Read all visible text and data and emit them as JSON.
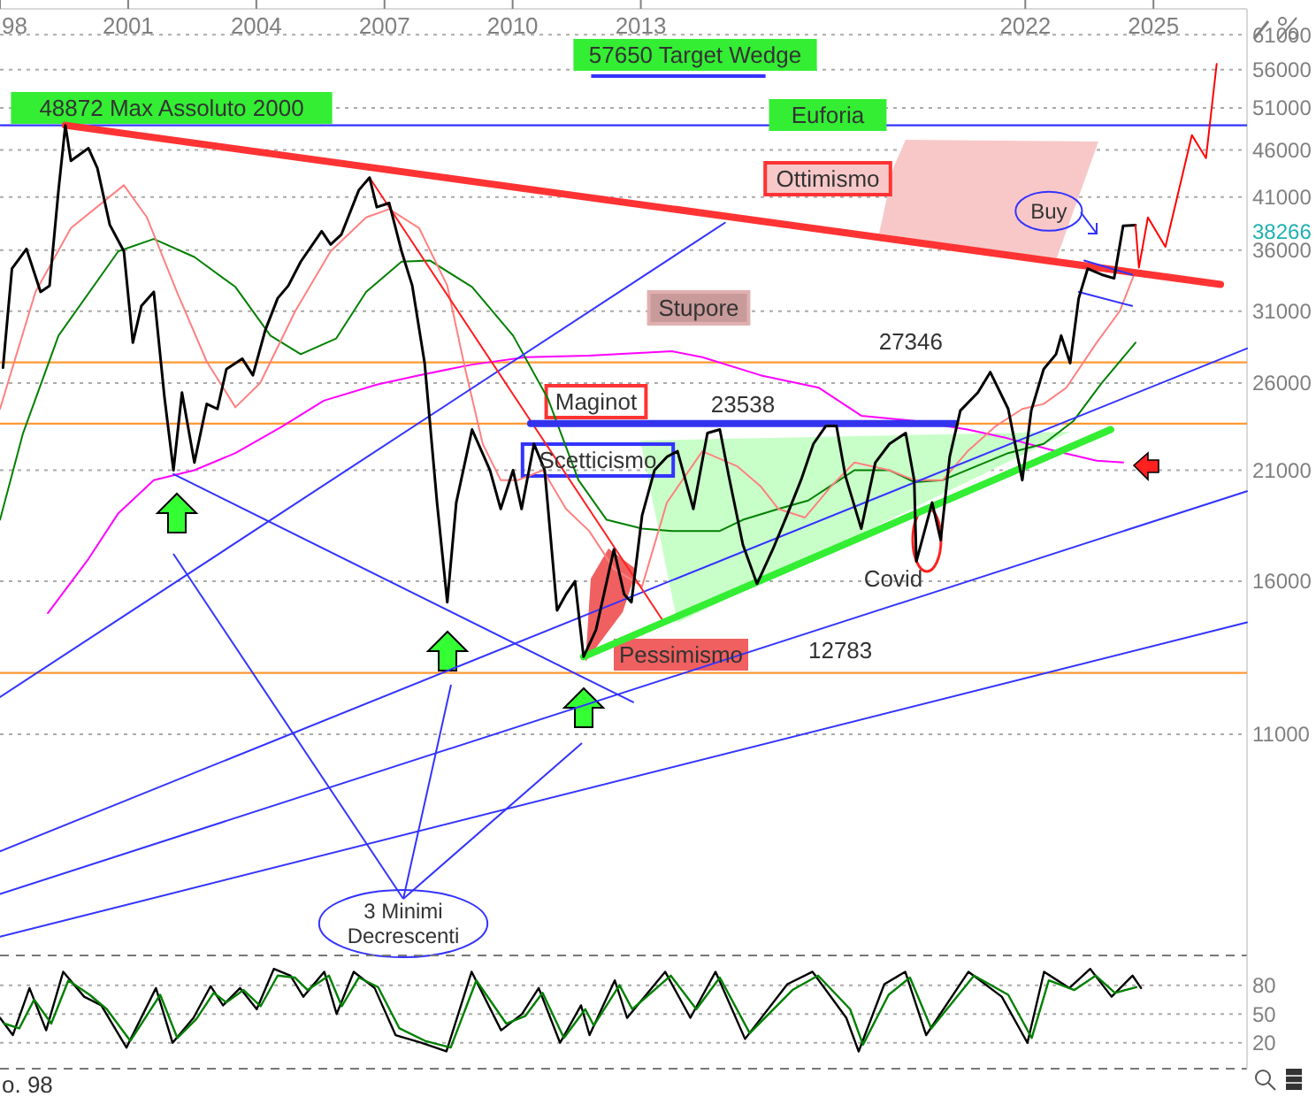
{
  "chart_data": [
    {
      "type": "line",
      "xlim": [
        1998,
        2027.19
      ],
      "xticks": [
        {
          "value": 1998,
          "label": "98"
        },
        2001,
        2004,
        2007,
        2010,
        2013,
        2022,
        2025
      ],
      "ylim": [
        6400,
        65000
      ],
      "yticks": [
        11000,
        16000,
        21000,
        26000,
        31000,
        36000,
        41000,
        46000,
        51000,
        56000,
        61000
      ],
      "log": "y",
      "grid": "y",
      "ref_lines": [
        {
          "axis": "y",
          "value": 48872,
          "color": "#3333ff"
        },
        {
          "axis": "y",
          "value": 23538,
          "color": "#ff9933"
        },
        {
          "axis": "y",
          "value": 27346,
          "color": "#ff9933"
        },
        {
          "axis": "y",
          "value": 12783,
          "color": "#ff9933"
        }
      ],
      "series": [
        {
          "type": "line",
          "color": "#ff00ff",
          "x": [
            1999.12,
            2000.07,
            2000.77,
            2001.6,
            2002.55,
            2003.51,
            2004.62,
            2005.58,
            2006.82,
            2007.81,
            2009.05,
            2010.3,
            2011.79,
            2013.73,
            2014.44,
            2015.8,
            2017.17,
            2018.16,
            2019.4,
            2020.65,
            2021.6,
            2022.72,
            2023.67,
            2024.29
          ],
          "values": [
            14800,
            16900,
            18900,
            20500,
            21000,
            21900,
            23400,
            24900,
            25900,
            26500,
            27200,
            27700,
            27800,
            28100,
            27700,
            26500,
            25700,
            24000,
            23700,
            23200,
            22700,
            22000,
            21500,
            21400
          ]
        },
        {
          "type": "line",
          "color": "#008000",
          "x": [
            1998,
            1998.54,
            1999.37,
            2000.77,
            2001.6,
            2002.55,
            2003.51,
            2004.33,
            2005.04,
            2005.87,
            2006.57,
            2007.4,
            2008.06,
            2009.05,
            2010.01,
            2010.83,
            2011.54,
            2012.2,
            2013.03,
            2013.73,
            2014.85,
            2015.39,
            2016.22,
            2016.92,
            2017.58,
            2018,
            2018.82,
            2019.4,
            2020.07,
            2021.06,
            2021.6,
            2022.43,
            2023.13,
            2023.79,
            2024.58
          ],
          "values": [
            18600,
            23000,
            29200,
            35900,
            37000,
            35400,
            32900,
            29200,
            27900,
            29000,
            32500,
            35000,
            35100,
            32900,
            29200,
            25000,
            20500,
            18600,
            18200,
            18100,
            18100,
            18600,
            19100,
            19500,
            20400,
            21000,
            21000,
            20400,
            20500,
            21400,
            21900,
            22400,
            23700,
            26000,
            28700
          ]
        },
        {
          "type": "line",
          "color": "#ff8080",
          "x": [
            1998,
            1998.83,
            1999.66,
            2000.9,
            2001.44,
            2002.14,
            2002.84,
            2003.51,
            2004.09,
            2004.91,
            2005.74,
            2006.57,
            2007.11,
            2007.81,
            2008.47,
            2008.89,
            2009.3,
            2009.72,
            2010.13,
            2010.71,
            2011.25,
            2011.79,
            2012.37,
            2013.03,
            2013.61,
            2014.44,
            2015.26,
            2015.8,
            2016.22,
            2016.84,
            2017.46,
            2018,
            2018.82,
            2019.4,
            2020.07,
            2020.65,
            2021.31,
            2021.93,
            2022.43,
            2022.96,
            2023.67,
            2024.21,
            2024.58
          ],
          "values": [
            24400,
            32500,
            38000,
            42200,
            39000,
            32500,
            27400,
            24500,
            26000,
            31000,
            35900,
            39000,
            39800,
            38000,
            33000,
            26900,
            22400,
            20500,
            20500,
            21000,
            19100,
            18100,
            16500,
            15800,
            19400,
            22000,
            21200,
            20200,
            19100,
            18700,
            20200,
            21400,
            21000,
            20500,
            20500,
            22000,
            23400,
            24400,
            24700,
            25700,
            28700,
            31000,
            34200
          ]
        },
        {
          "type": "line",
          "color": "#3333ff",
          "x": [
            2002.06,
            2012.82
          ],
          "values": [
            20800,
            11900
          ]
        },
        {
          "type": "line",
          "color": "#3333ff",
          "x": [
            1998,
            2014.97
          ],
          "values": [
            12050,
            38500
          ]
        },
        {
          "type": "line",
          "color": "#3333ff",
          "x": [
            1998,
            2027.19
          ],
          "values": [
            8260,
            28300
          ]
        },
        {
          "type": "line",
          "color": "#3333ff",
          "x": [
            1998,
            2027.19
          ],
          "values": [
            7440,
            19950
          ]
        },
        {
          "type": "line",
          "color": "#3333ff",
          "x": [
            1998,
            2027.19
          ],
          "values": [
            6700,
            14470
          ]
        },
        {
          "type": "line",
          "color": "#ff3333",
          "x": [
            1999.53,
            2026.57
          ],
          "values": [
            48872,
            33100
          ]
        },
        {
          "type": "line",
          "color": "#ff2020",
          "x": [
            2006.65,
            2013.53
          ],
          "values": [
            43000,
            14500
          ]
        },
        {
          "type": "line",
          "color": "#33ee33",
          "x": [
            2011.66,
            2024.0
          ],
          "values": [
            13300,
            23200
          ]
        },
        {
          "type": "line",
          "color": "#3333ee",
          "x": [
            2010.42,
            2020.36
          ],
          "values": [
            23538,
            23538
          ]
        },
        {
          "type": "line",
          "color": "#3333ff",
          "x": [
            2023.38,
            2024.5
          ],
          "values": [
            35100,
            33900
          ]
        },
        {
          "type": "line",
          "color": "#3333ff",
          "x": [
            2023.25,
            2024.5
          ],
          "values": [
            32500,
            31400
          ]
        },
        {
          "type": "line",
          "color": "#000000",
          "x": [
            1998.07,
            1998.28,
            1998.62,
            1998.95,
            1999.16,
            1999.37,
            1999.53,
            1999.66,
            2000.07,
            2000.28,
            2000.57,
            2000.9,
            2001.11,
            2001.31,
            2001.6,
            2001.85,
            2002.06,
            2002.26,
            2002.55,
            2002.84,
            2003.09,
            2003.3,
            2003.67,
            2003.92,
            2004.21,
            2004.5,
            2004.75,
            2005.04,
            2005.53,
            2005.74,
            2005.99,
            2006.4,
            2006.65,
            2006.82,
            2007.11,
            2007.4,
            2007.65,
            2007.94,
            2008.23,
            2008.47,
            2008.68,
            2009.05,
            2009.47,
            2009.72,
            2010.01,
            2010.21,
            2010.5,
            2010.75,
            2011.04,
            2011.25,
            2011.46,
            2011.66,
            2011.95,
            2012.37,
            2012.61,
            2012.78,
            2013.03,
            2013.32,
            2013.61,
            2013.86,
            2014.23,
            2014.56,
            2014.85,
            2015.06,
            2015.39,
            2015.72,
            2016.09,
            2016.42,
            2016.75,
            2017.04,
            2017.33,
            2017.58,
            2017.79,
            2018.16,
            2018.49,
            2018.82,
            2019.2,
            2019.4,
            2019.45,
            2019.82,
            2020.02,
            2020.23,
            2020.48,
            2020.89,
            2021.18,
            2021.6,
            2021.93,
            2022.14,
            2022.43,
            2022.72,
            2022.84,
            2023.05,
            2023.25,
            2023.46,
            2023.79,
            2024.08,
            2024.29,
            2024.58
          ],
          "values": [
            27000,
            34400,
            36100,
            32500,
            33000,
            41700,
            48872,
            44800,
            46200,
            44000,
            38300,
            35900,
            28700,
            31400,
            32500,
            25100,
            21000,
            25400,
            21400,
            24700,
            24400,
            26900,
            27600,
            26500,
            29600,
            32000,
            33000,
            35000,
            37700,
            36500,
            37400,
            41700,
            43000,
            40000,
            40400,
            35900,
            33000,
            27300,
            19400,
            15200,
            19400,
            23200,
            21000,
            19100,
            21000,
            19100,
            22400,
            21000,
            14900,
            15500,
            16000,
            13300,
            14200,
            17300,
            15500,
            15200,
            18800,
            21000,
            21700,
            22000,
            19100,
            23000,
            23200,
            20700,
            17500,
            15900,
            17300,
            18800,
            20500,
            22400,
            23400,
            23400,
            20700,
            18200,
            21400,
            22400,
            23000,
            20500,
            16800,
            19400,
            17700,
            21700,
            24300,
            25400,
            26700,
            24400,
            20500,
            24300,
            26900,
            27900,
            29200,
            27300,
            32000,
            34400,
            33900,
            33600,
            38200,
            38266
          ]
        },
        {
          "type": "line",
          "color": "#ff0000",
          "x": [
            2024.58,
            2024.66,
            2024.87,
            2025.28,
            2025.9,
            2026.23,
            2026.48
          ],
          "values": [
            38266,
            34500,
            39000,
            36300,
            47700,
            45100,
            56800
          ]
        }
      ],
      "annotations": [
        "48872 Max Assoluto 2000",
        "57650 Target Wedge",
        "Euforia",
        "Ottimismo",
        "Stupore",
        "Maginot",
        {
          "text": "23538",
          "x": 2015.39,
          "y": 23538
        },
        "Scetticismo",
        {
          "text": "27346",
          "x": 2019.32,
          "y": 27346
        },
        "Covid",
        "Pessimismo",
        {
          "text": "12783",
          "x": 2017.67,
          "y": 12783
        },
        {
          "text": "Buy",
          "x": 2022.55,
          "y": 39600
        },
        "3 Minimi Decrescenti",
        "38266"
      ]
    },
    {
      "type": "line",
      "xlim": [
        1998,
        2027.19
      ],
      "ylim": [
        -7,
        111
      ],
      "yticks": [
        20,
        50,
        80
      ],
      "grid": "y",
      "tick_labels": "y",
      "series": [
        {
          "type": "line",
          "color": "#000000",
          "x": [
            1998,
            1998.3,
            1998.69,
            1999.08,
            1999.48,
            1999.97,
            2000.37,
            2000.96,
            2001.65,
            2002.04,
            2002.53,
            2002.93,
            2003.22,
            2003.62,
            2004.01,
            2004.41,
            2004.8,
            2005.1,
            2005.59,
            2005.88,
            2006.28,
            2006.77,
            2007.26,
            2007.86,
            2008.45,
            2009.04,
            2009.73,
            2010.22,
            2010.61,
            2011.11,
            2011.6,
            2011.8,
            2012.39,
            2012.68,
            2013.57,
            2014.16,
            2014.75,
            2015.44,
            2016.43,
            2017.02,
            2017.81,
            2018.1,
            2018.7,
            2019.19,
            2019.68,
            2020.67,
            2021.45,
            2022.05,
            2022.44,
            2023.03,
            2023.52,
            2024.02,
            2024.51,
            2024.71
          ],
          "values": [
            46,
            28,
            77,
            33,
            94,
            68,
            59,
            15,
            77,
            20,
            46,
            79,
            59,
            77,
            55,
            97,
            90,
            68,
            94,
            50,
            94,
            77,
            28,
            20,
            11,
            94,
            33,
            50,
            77,
            20,
            59,
            28,
            85,
            46,
            94,
            46,
            94,
            24,
            81,
            94,
            46,
            11,
            81,
            94,
            28,
            94,
            68,
            20,
            94,
            77,
            97,
            68,
            90,
            77
          ]
        },
        {
          "type": "line",
          "color": "#008000",
          "x": [
            1998.1,
            1998.45,
            1998.8,
            1999.2,
            1999.6,
            2000.1,
            2000.5,
            2001.05,
            2001.75,
            2002.15,
            2002.6,
            2003.0,
            2003.3,
            2003.7,
            2004.1,
            2004.5,
            2004.9,
            2005.2,
            2005.7,
            2006.0,
            2006.4,
            2006.85,
            2007.35,
            2007.95,
            2008.55,
            2009.15,
            2009.85,
            2010.3,
            2010.7,
            2011.2,
            2011.7,
            2011.9,
            2012.5,
            2012.8,
            2013.7,
            2014.3,
            2014.85,
            2015.55,
            2016.55,
            2017.15,
            2017.9,
            2018.2,
            2018.8,
            2019.3,
            2019.8,
            2020.8,
            2021.6,
            2022.15,
            2022.55,
            2023.15,
            2023.65,
            2024.1,
            2024.6
          ],
          "values": [
            40,
            35,
            65,
            40,
            85,
            70,
            55,
            22,
            70,
            25,
            45,
            72,
            62,
            75,
            58,
            90,
            88,
            75,
            90,
            58,
            88,
            78,
            35,
            22,
            15,
            85,
            40,
            48,
            72,
            25,
            55,
            38,
            80,
            55,
            90,
            55,
            88,
            30,
            75,
            90,
            55,
            18,
            70,
            88,
            35,
            90,
            70,
            25,
            85,
            75,
            90,
            72,
            78
          ]
        }
      ],
      "annotations": [
        "o. 98"
      ]
    }
  ]
}
